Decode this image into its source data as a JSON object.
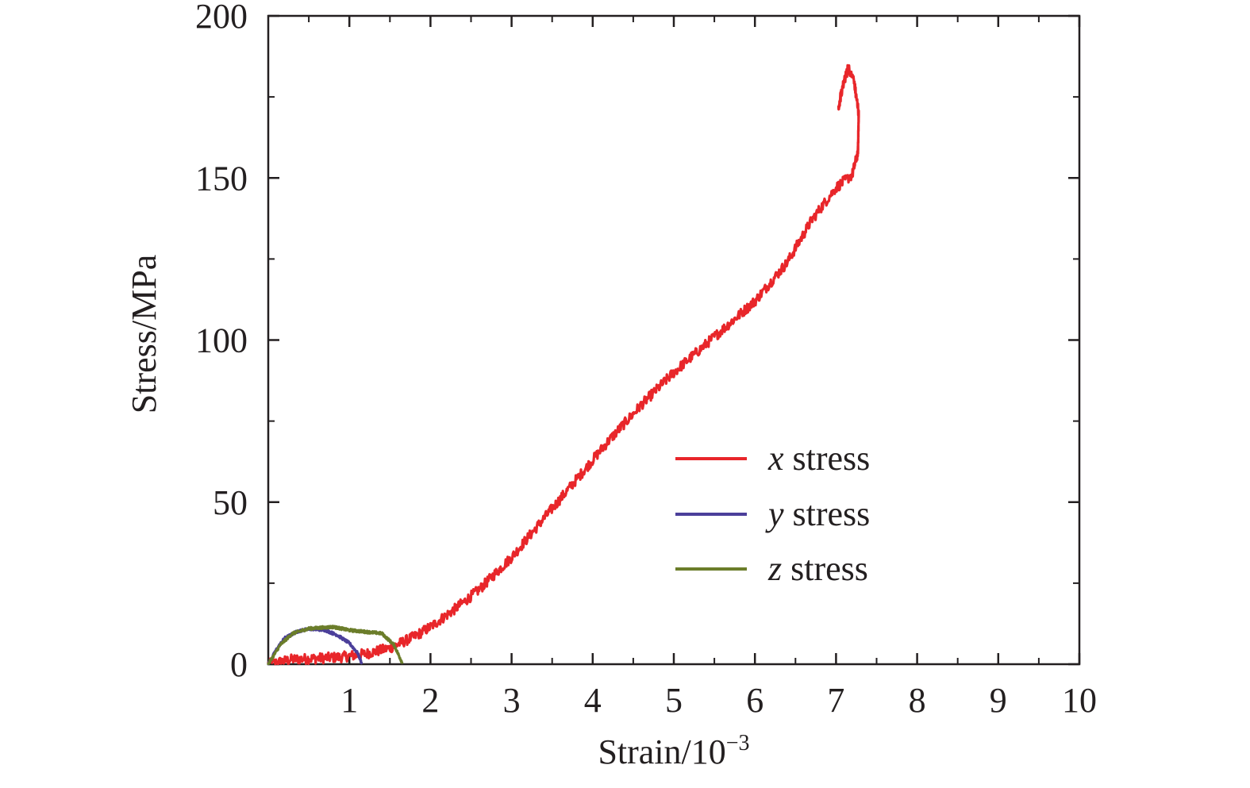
{
  "chart_data": {
    "type": "line",
    "title": "",
    "xlabel": "Strain/10",
    "xlabel_superscript": "−3",
    "ylabel": "Stress/MPa",
    "xlim": [
      0,
      10
    ],
    "ylim": [
      0,
      200
    ],
    "x_ticks": [
      1,
      2,
      3,
      4,
      5,
      6,
      7,
      8,
      9,
      10
    ],
    "x_tick_labels": [
      "1",
      "2",
      "3",
      "4",
      "5",
      "6",
      "7",
      "8",
      "9",
      "10"
    ],
    "y_ticks": [
      0,
      50,
      100,
      150,
      200
    ],
    "y_tick_labels": [
      "0",
      "50",
      "100",
      "150",
      "200"
    ],
    "legend_position": "center-right",
    "grid": false,
    "series": [
      {
        "name": "x stress",
        "var": "x",
        "label_rest": " stress",
        "color": "#e8262a",
        "points": [
          [
            0.0,
            0.0
          ],
          [
            0.3,
            1.5
          ],
          [
            0.6,
            1.8
          ],
          [
            0.9,
            2.2
          ],
          [
            1.2,
            3.2
          ],
          [
            1.5,
            5.0
          ],
          [
            1.8,
            8.5
          ],
          [
            2.0,
            11.5
          ],
          [
            2.3,
            17.0
          ],
          [
            2.6,
            23.0
          ],
          [
            3.0,
            33.0
          ],
          [
            3.4,
            45.0
          ],
          [
            3.8,
            57.0
          ],
          [
            4.2,
            69.0
          ],
          [
            4.6,
            80.0
          ],
          [
            5.0,
            90.0
          ],
          [
            5.5,
            101.0
          ],
          [
            6.0,
            112.0
          ],
          [
            6.4,
            124.0
          ],
          [
            6.7,
            137.0
          ],
          [
            7.0,
            147.0
          ],
          [
            7.2,
            151.0
          ],
          [
            7.27,
            158.0
          ],
          [
            7.28,
            170.0
          ],
          [
            7.22,
            180.0
          ],
          [
            7.15,
            184.0
          ],
          [
            7.08,
            178.0
          ],
          [
            7.03,
            172.0
          ]
        ]
      },
      {
        "name": "y stress",
        "var": "y",
        "label_rest": " stress",
        "color": "#4b3f9a",
        "points": [
          [
            0.0,
            0.0
          ],
          [
            0.1,
            4.5
          ],
          [
            0.2,
            8.0
          ],
          [
            0.35,
            10.0
          ],
          [
            0.5,
            11.0
          ],
          [
            0.7,
            10.5
          ],
          [
            0.85,
            9.0
          ],
          [
            1.0,
            6.5
          ],
          [
            1.1,
            3.5
          ],
          [
            1.15,
            0.5
          ]
        ]
      },
      {
        "name": "z stress",
        "var": "z",
        "label_rest": " stress",
        "color": "#6b7d2a",
        "points": [
          [
            0.0,
            0.0
          ],
          [
            0.15,
            6.0
          ],
          [
            0.3,
            9.5
          ],
          [
            0.5,
            11.0
          ],
          [
            0.8,
            11.5
          ],
          [
            1.0,
            10.5
          ],
          [
            1.2,
            10.0
          ],
          [
            1.4,
            9.5
          ],
          [
            1.55,
            6.0
          ],
          [
            1.65,
            0.5
          ]
        ]
      }
    ]
  }
}
